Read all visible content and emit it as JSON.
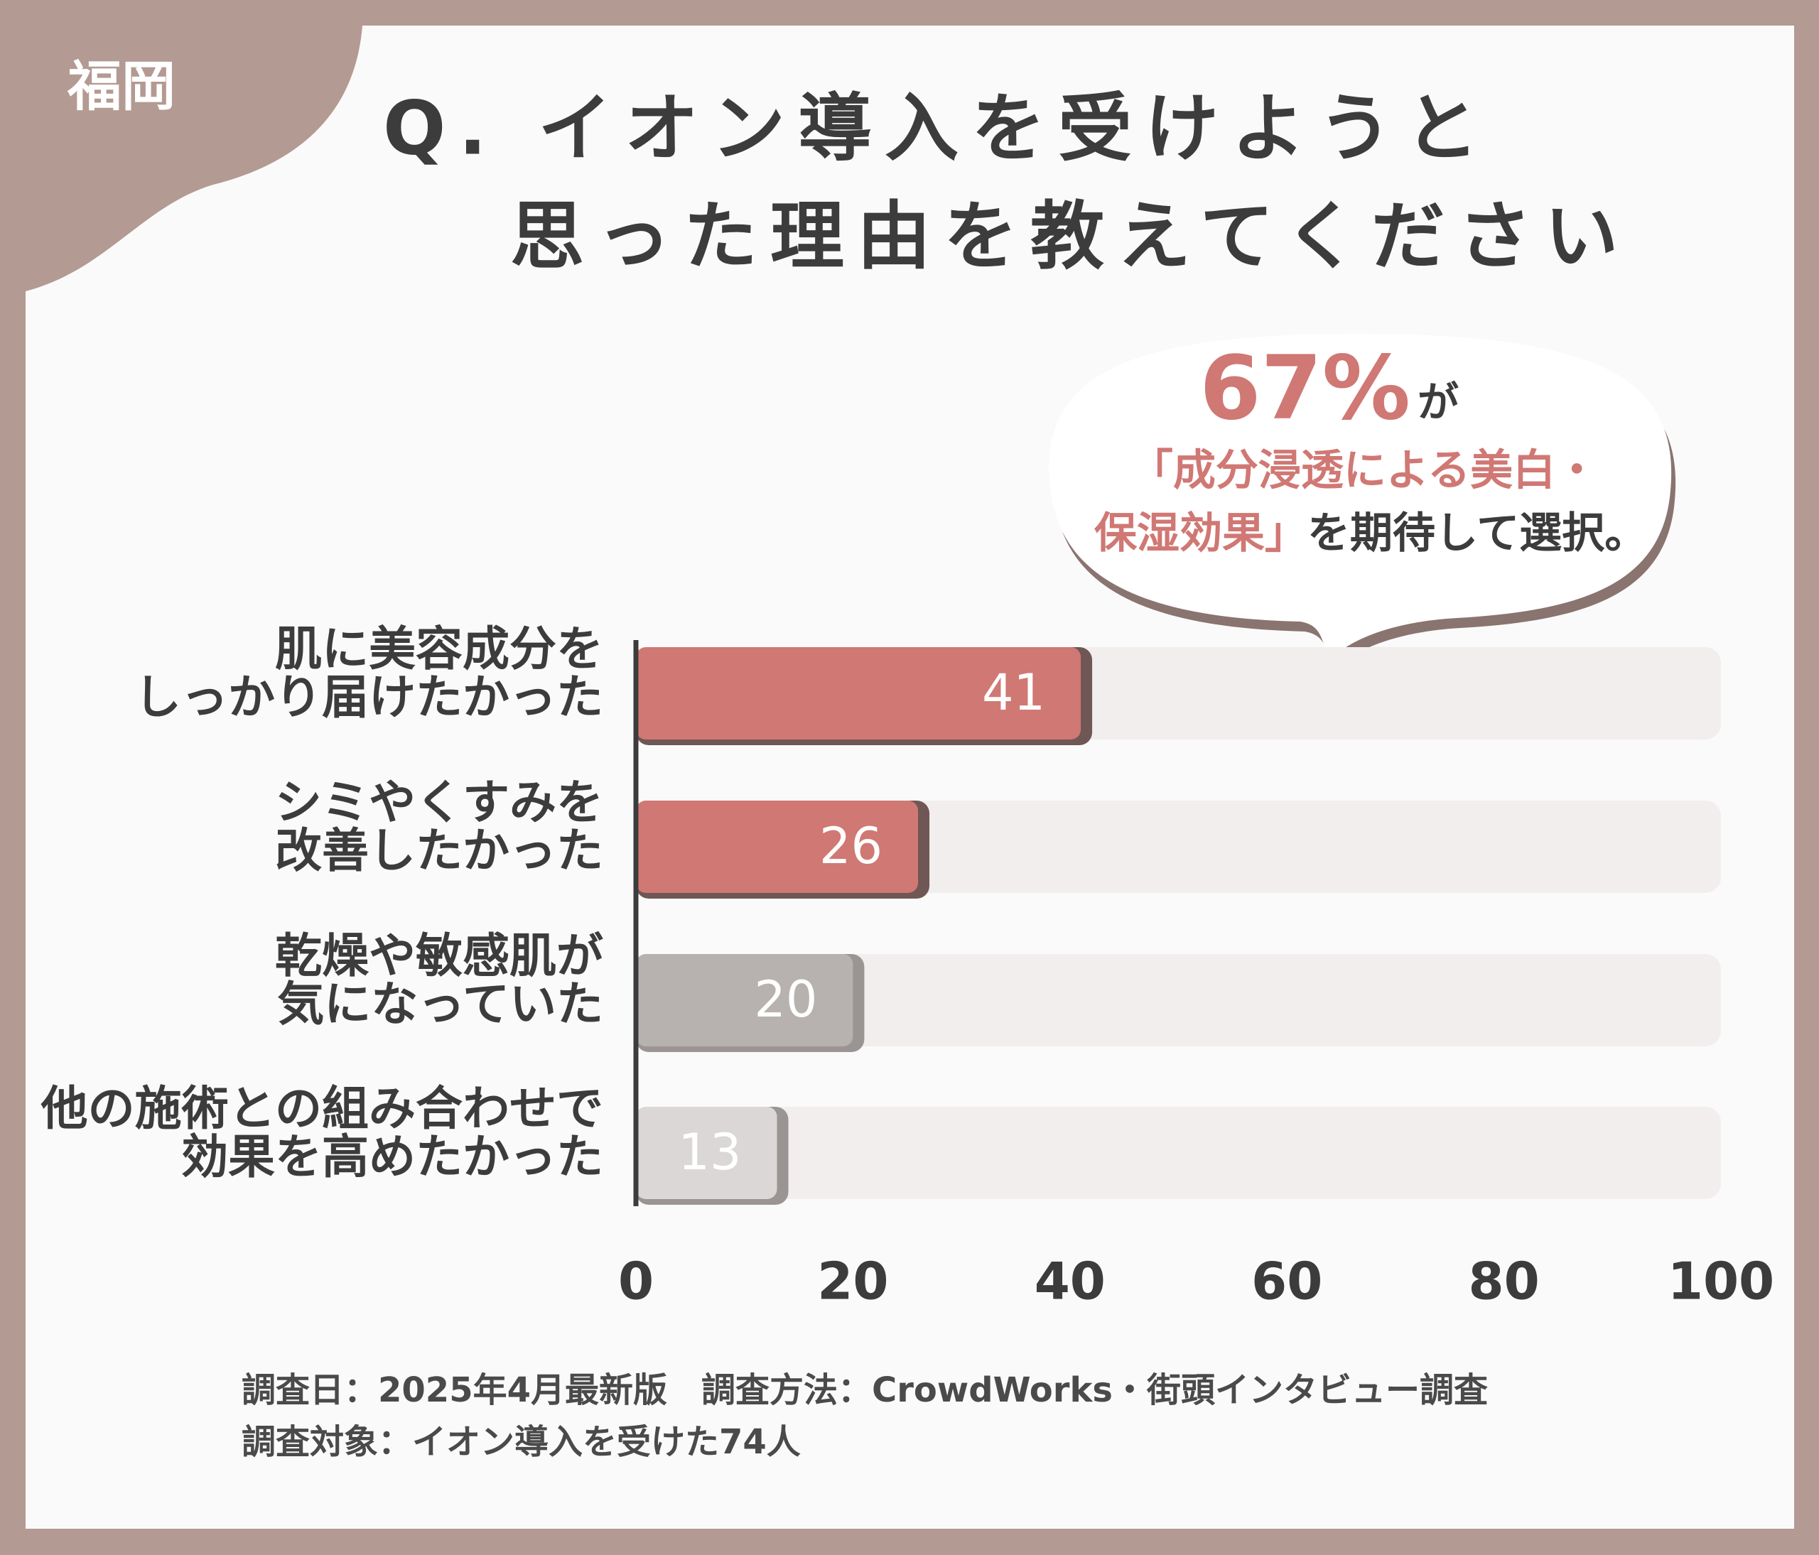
{
  "tab": "福岡",
  "chart_data": {
    "type": "bar",
    "orientation": "horizontal",
    "title": [
      "Q. イオン導入を受けようと",
      "思った理由を教えてください"
    ],
    "categories": [
      [
        "肌に美容成分を",
        "しっかり届けたかった"
      ],
      [
        "シミやくすみを",
        "改善したかった"
      ],
      [
        "乾燥や敏感肌が",
        "気になっていた"
      ],
      [
        "他の施術との組み合わせで",
        "効果を高めたかった"
      ]
    ],
    "values": [
      41,
      26,
      20,
      13
    ],
    "colors": [
      "#d07874",
      "#d07874",
      "#b7b2b0",
      "#dad7d6"
    ],
    "xlim": [
      0,
      100
    ],
    "xticks": [
      0,
      20,
      40,
      60,
      80,
      100
    ],
    "callout": {
      "highlight": "67%",
      "highlight_suffix": "が",
      "line1": "「成分浸透による美白・",
      "line2_colored": "保湿効果」",
      "line2_rest": "を期待して選択。"
    }
  },
  "footer": [
    "調査日：2025年4月最新版　調査方法：CrowdWorks・街頭インタビュー調査",
    "調査対象：イオン導入を受けた74人"
  ]
}
